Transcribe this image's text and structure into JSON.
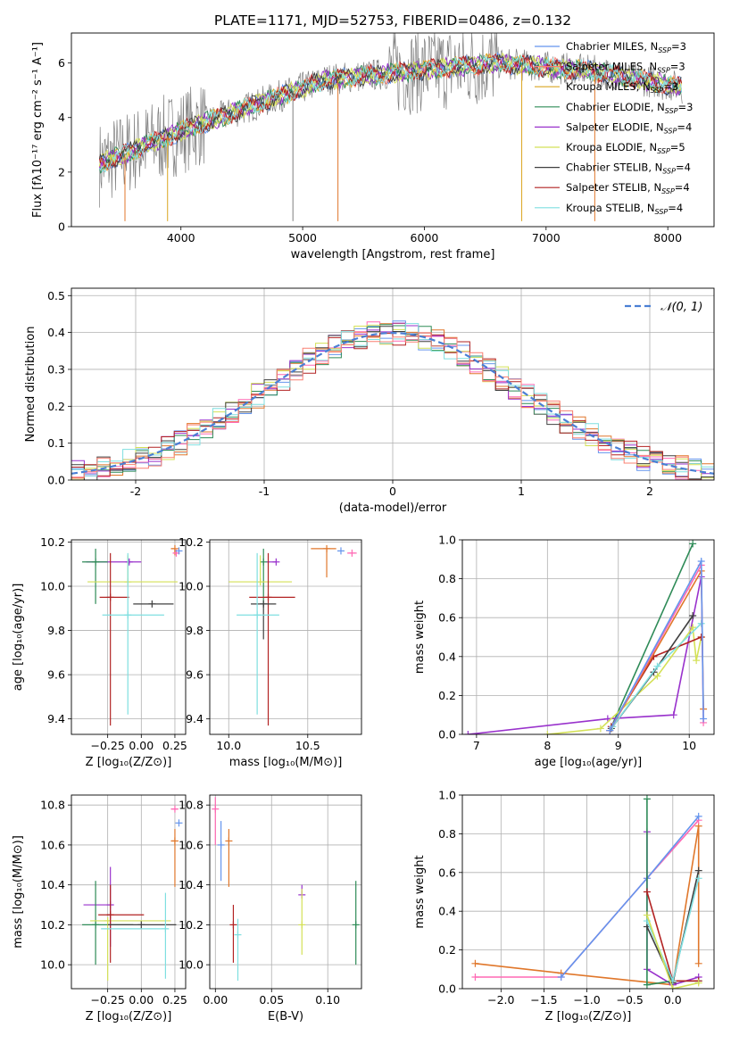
{
  "figure_title": "PLATE=1171, MJD=52753, FIBERID=0486, z=0.132",
  "legend_entries": [
    {
      "label": "Chabrier MILES, N",
      "sub": "SSP",
      "suffix": "=3",
      "color": "#6495ed"
    },
    {
      "label": "Salpeter MILES, N",
      "sub": "SSP",
      "suffix": "=3",
      "color": "#fa8072"
    },
    {
      "label": "Kroupa MILES, N",
      "sub": "SSP",
      "suffix": "=3",
      "color": "#daa520"
    },
    {
      "label": "Chabrier ELODIE, N",
      "sub": "SSP",
      "suffix": "=3",
      "color": "#2e8b57"
    },
    {
      "label": "Salpeter ELODIE, N",
      "sub": "SSP",
      "suffix": "=4",
      "color": "#9932cc"
    },
    {
      "label": "Kroupa ELODIE, N",
      "sub": "SSP",
      "suffix": "=5",
      "color": "#d4e157"
    },
    {
      "label": "Chabrier STELIB, N",
      "sub": "SSP",
      "suffix": "=4",
      "color": "#404040"
    },
    {
      "label": "Salpeter STELIB, N",
      "sub": "SSP",
      "suffix": "=4",
      "color": "#b22222"
    },
    {
      "label": "Kroupa STELIB, N",
      "sub": "SSP",
      "suffix": "=4",
      "color": "#7fdfe0"
    }
  ],
  "chart_data": [
    {
      "type": "line",
      "xlabel": "wavelength [Angstrom, rest frame]",
      "ylabel": "Flux [fλ10⁻¹⁷ erg cm⁻² s⁻¹ A⁻¹]",
      "xlim": [
        3100,
        8380
      ],
      "ylim": [
        0,
        7.1
      ],
      "xticks": [
        4000,
        5000,
        6000,
        7000,
        8000
      ],
      "yticks": [
        0,
        2,
        4,
        6
      ],
      "grid": false,
      "legend": "right",
      "series_names": "legend_entries",
      "data_range": [
        3330,
        8120
      ]
    },
    {
      "type": "histogram",
      "xlabel": "(data-model)/error",
      "ylabel": "Normed distribution",
      "xlim": [
        -2.5,
        2.5
      ],
      "ylim": [
        0,
        0.52
      ],
      "xticks": [
        -2,
        -1,
        0,
        1,
        2
      ],
      "yticks": [
        0.0,
        0.1,
        0.2,
        0.3,
        0.4,
        0.5
      ],
      "grid": true,
      "reference_curve": {
        "label": "𝒩(0, 1)",
        "color": "#4a7fd4"
      },
      "bin_width": 0.1
    },
    {
      "type": "scatter",
      "xlabel": "Z [log₁₀(Z/Z⊙)]",
      "ylabel": "age  [log₁₀(age/yr)]",
      "xlim": [
        -0.52,
        0.33
      ],
      "ylim": [
        9.33,
        10.21
      ],
      "xticks": [
        -0.25,
        0.0,
        0.25
      ],
      "xtick_labels": [
        "−0.25",
        "0.00",
        "0.25"
      ],
      "yticks": [
        9.4,
        9.6,
        9.8,
        10.0,
        10.2
      ],
      "points": [
        {
          "color": "#9932cc",
          "x": -0.09,
          "xerr": [
            0.32,
            0.09
          ],
          "y": 10.11,
          "yerr": [
            0.01,
            0.01
          ]
        },
        {
          "color": "#2e8b57",
          "x": -0.34,
          "xerr": [
            0.1,
            0.09
          ],
          "y": 10.11,
          "yerr": [
            0.19,
            0.06
          ]
        },
        {
          "color": "#d4e157",
          "x": -0.1,
          "xerr": [
            0.3,
            0.37
          ],
          "y": 10.02,
          "yerr": [
            0.0,
            0.12
          ]
        },
        {
          "color": "#b22222",
          "x": -0.23,
          "xerr": [
            0.08,
            0.14
          ],
          "y": 9.95,
          "yerr": [
            0.58,
            0.2
          ]
        },
        {
          "color": "#404040",
          "x": 0.08,
          "xerr": [
            0.14,
            0.16
          ],
          "y": 9.92,
          "yerr": [
            0.0,
            0.0
          ]
        },
        {
          "color": "#7fdfe0",
          "x": -0.1,
          "xerr": [
            0.19,
            0.27
          ],
          "y": 9.87,
          "yerr": [
            0.45,
            0.28
          ]
        },
        {
          "color": "#e0772b",
          "x": 0.25,
          "xerr": [
            0.03,
            0.0
          ],
          "y": 10.17,
          "yerr": [
            0.03,
            0.0
          ]
        },
        {
          "color": "#ff69b4",
          "x": 0.26,
          "xerr": [
            0.02,
            0.02
          ],
          "y": 10.15,
          "yerr": [
            0.0,
            0.0
          ]
        },
        {
          "color": "#6495ed",
          "x": 0.28,
          "xerr": [
            0.0,
            0.0
          ],
          "y": 10.16,
          "yerr": [
            0.0,
            0.0
          ]
        }
      ]
    },
    {
      "type": "scatter",
      "xlabel": "mass [log₁₀(M/M⊙)]",
      "ylabel": "",
      "xlim": [
        9.88,
        10.84
      ],
      "ylim": [
        9.33,
        10.21
      ],
      "xticks": [
        10.0,
        10.5
      ],
      "xtick_labels": [
        "10.0",
        "10.5"
      ],
      "yticks": [
        9.4,
        9.6,
        9.8,
        10.0,
        10.2
      ],
      "points": [
        {
          "color": "#9932cc",
          "x": 10.3,
          "xerr": [
            0.06,
            0.0
          ],
          "y": 10.11,
          "yerr": [
            0.0,
            0.0
          ]
        },
        {
          "color": "#2e8b57",
          "x": 10.22,
          "xerr": [
            0.0,
            0.0
          ],
          "y": 10.11,
          "yerr": [
            0.2,
            0.06
          ]
        },
        {
          "color": "#d4e157",
          "x": 10.2,
          "xerr": [
            0.2,
            0.2
          ],
          "y": 10.02,
          "yerr": [
            0.0,
            0.12
          ]
        },
        {
          "color": "#b22222",
          "x": 10.25,
          "xerr": [
            0.12,
            0.17
          ],
          "y": 9.95,
          "yerr": [
            0.58,
            0.2
          ]
        },
        {
          "color": "#404040",
          "x": 10.22,
          "xerr": [
            0.08,
            0.08
          ],
          "y": 9.92,
          "yerr": [
            0.16,
            0.0
          ]
        },
        {
          "color": "#7fdfe0",
          "x": 10.18,
          "xerr": [
            0.13,
            0.14
          ],
          "y": 9.87,
          "yerr": [
            0.45,
            0.28
          ]
        },
        {
          "color": "#e0772b",
          "x": 10.62,
          "xerr": [
            0.1,
            0.06
          ],
          "y": 10.17,
          "yerr": [
            0.13,
            0.0
          ]
        },
        {
          "color": "#ff69b4",
          "x": 10.78,
          "xerr": [
            0.03,
            0.03
          ],
          "y": 10.15,
          "yerr": [
            0.0,
            0.0
          ]
        },
        {
          "color": "#6495ed",
          "x": 10.71,
          "xerr": [
            0.0,
            0.0
          ],
          "y": 10.16,
          "yerr": [
            0.0,
            0.0
          ]
        }
      ]
    },
    {
      "type": "line",
      "xlabel": "age  [log₁₀(age/yr)]",
      "ylabel": "mass weight",
      "xlim": [
        6.8,
        10.35
      ],
      "ylim": [
        0,
        1.0
      ],
      "xticks": [
        7,
        8,
        9,
        10
      ],
      "yticks": [
        0.0,
        0.2,
        0.4,
        0.6,
        0.8,
        1.0
      ],
      "series": [
        {
          "color": "#2e8b57",
          "points": [
            [
              8.88,
              0.02
            ],
            [
              10.05,
              0.98
            ]
          ]
        },
        {
          "color": "#9932cc",
          "points": [
            [
              6.88,
              0.0
            ],
            [
              8.85,
              0.08
            ],
            [
              9.78,
              0.1
            ],
            [
              10.17,
              0.81
            ]
          ]
        },
        {
          "color": "#d4e157",
          "points": [
            [
              8.0,
              0.0
            ],
            [
              8.75,
              0.03
            ],
            [
              9.55,
              0.3
            ],
            [
              10.05,
              0.55
            ],
            [
              10.1,
              0.38
            ],
            [
              10.17,
              0.5
            ]
          ]
        },
        {
          "color": "#b22222",
          "points": [
            [
              8.9,
              0.04
            ],
            [
              9.5,
              0.4
            ],
            [
              10.17,
              0.5
            ]
          ]
        },
        {
          "color": "#404040",
          "points": [
            [
              8.9,
              0.03
            ],
            [
              9.5,
              0.32
            ],
            [
              10.05,
              0.61
            ]
          ]
        },
        {
          "color": "#7fdfe0",
          "points": [
            [
              8.92,
              0.04
            ],
            [
              9.55,
              0.35
            ],
            [
              10.17,
              0.57
            ]
          ]
        },
        {
          "color": "#e0772b",
          "points": [
            [
              8.88,
              0.02
            ],
            [
              10.17,
              0.84
            ],
            [
              10.2,
              0.13
            ]
          ]
        },
        {
          "color": "#ff69b4",
          "points": [
            [
              8.88,
              0.02
            ],
            [
              10.17,
              0.87
            ],
            [
              10.2,
              0.06
            ]
          ]
        },
        {
          "color": "#6495ed",
          "points": [
            [
              8.88,
              0.02
            ],
            [
              10.17,
              0.89
            ],
            [
              10.2,
              0.08
            ]
          ]
        }
      ]
    },
    {
      "type": "scatter",
      "xlabel": "Z [log₁₀(Z/Z⊙)]",
      "ylabel": "mass [log₁₀(M/M⊙)]",
      "xlim": [
        -0.52,
        0.33
      ],
      "ylim": [
        9.88,
        10.85
      ],
      "xticks": [
        -0.25,
        0.0,
        0.25
      ],
      "xtick_labels": [
        "−0.25",
        "0.00",
        "0.25"
      ],
      "yticks": [
        10.0,
        10.2,
        10.4,
        10.6,
        10.8
      ],
      "points": [
        {
          "color": "#9932cc",
          "x": -0.23,
          "xerr": [
            0.2,
            0.0
          ],
          "y": 10.3,
          "yerr": [
            0.21,
            0.19
          ]
        },
        {
          "color": "#2e8b57",
          "x": -0.34,
          "xerr": [
            0.1,
            0.28
          ],
          "y": 10.2,
          "yerr": [
            0.2,
            0.22
          ]
        },
        {
          "color": "#d4e157",
          "x": -0.25,
          "xerr": [
            0.13,
            0.47
          ],
          "y": 10.22,
          "yerr": [
            0.3,
            0.0
          ]
        },
        {
          "color": "#b22222",
          "x": -0.23,
          "xerr": [
            0.09,
            0.25
          ],
          "y": 10.25,
          "yerr": [
            0.24,
            0.15
          ]
        },
        {
          "color": "#404040",
          "x": 0.0,
          "xerr": [
            0.25,
            0.26
          ],
          "y": 10.2,
          "yerr": [
            0.0,
            0.0
          ]
        },
        {
          "color": "#7fdfe0",
          "x": 0.18,
          "xerr": [
            0.48,
            0.02
          ],
          "y": 10.18,
          "yerr": [
            0.25,
            0.18
          ]
        },
        {
          "color": "#e0772b",
          "x": 0.25,
          "xerr": [
            0.03,
            0.0
          ],
          "y": 10.62,
          "yerr": [
            0.23,
            0.06
          ]
        },
        {
          "color": "#ff69b4",
          "x": 0.25,
          "xerr": [
            0.03,
            0.02
          ],
          "y": 10.78,
          "yerr": [
            0.0,
            0.0
          ]
        },
        {
          "color": "#6495ed",
          "x": 0.28,
          "xerr": [
            0.0,
            0.0
          ],
          "y": 10.71,
          "yerr": [
            0.0,
            0.0
          ]
        }
      ]
    },
    {
      "type": "scatter",
      "xlabel": "E(B-V)",
      "ylabel": "",
      "xlim": [
        -0.005,
        0.13
      ],
      "ylim": [
        9.88,
        10.85
      ],
      "xticks": [
        0.0,
        0.05,
        0.1
      ],
      "xtick_labels": [
        "0.00",
        "0.05",
        "0.10"
      ],
      "yticks": [
        10.0,
        10.2,
        10.4,
        10.6,
        10.8
      ],
      "points": [
        {
          "color": "#ff69b4",
          "x": 0.0,
          "xerr": [
            0,
            0
          ],
          "y": 10.78,
          "yerr": [
            0.18,
            0.06
          ]
        },
        {
          "color": "#6495ed",
          "x": 0.005,
          "xerr": [
            0,
            0
          ],
          "y": 10.6,
          "yerr": [
            0.18,
            0.12
          ]
        },
        {
          "color": "#e0772b",
          "x": 0.012,
          "xerr": [
            0,
            0
          ],
          "y": 10.62,
          "yerr": [
            0.23,
            0.06
          ]
        },
        {
          "color": "#b22222",
          "x": 0.016,
          "xerr": [
            0,
            0
          ],
          "y": 10.2,
          "yerr": [
            0.19,
            0.1
          ]
        },
        {
          "color": "#7fdfe0",
          "x": 0.02,
          "xerr": [
            0,
            0
          ],
          "y": 10.15,
          "yerr": [
            0.23,
            0.08
          ]
        },
        {
          "color": "#9932cc",
          "x": 0.077,
          "xerr": [
            0,
            0
          ],
          "y": 10.35,
          "yerr": [
            0.0,
            0.05
          ]
        },
        {
          "color": "#d4e157",
          "x": 0.077,
          "xerr": [
            0,
            0
          ],
          "y": 10.2,
          "yerr": [
            0.15,
            0.18
          ]
        },
        {
          "color": "#2e8b57",
          "x": 0.125,
          "xerr": [
            0,
            0
          ],
          "y": 10.2,
          "yerr": [
            0.2,
            0.22
          ]
        }
      ]
    },
    {
      "type": "line",
      "xlabel": "Z [log₁₀(Z/Z⊙)]",
      "ylabel": "mass weight",
      "xlim": [
        -2.45,
        0.48
      ],
      "ylim": [
        0,
        1.0
      ],
      "xticks": [
        -2.0,
        -1.5,
        -1.0,
        -0.5,
        0.0
      ],
      "xtick_labels": [
        "−2.0",
        "−1.5",
        "−1.0",
        "−0.5",
        "0.0"
      ],
      "yticks": [
        0.0,
        0.2,
        0.4,
        0.6,
        0.8,
        1.0
      ],
      "series": [
        {
          "color": "#e0772b",
          "points": [
            [
              -2.3,
              0.13
            ],
            [
              -1.3,
              0.08
            ],
            [
              0.0,
              0.02
            ],
            [
              0.3,
              0.84
            ],
            [
              0.3,
              0.13
            ]
          ]
        },
        {
          "color": "#ff69b4",
          "points": [
            [
              -2.3,
              0.06
            ],
            [
              -1.3,
              0.06
            ],
            [
              -0.3,
              0.57
            ],
            [
              0.3,
              0.87
            ]
          ]
        },
        {
          "color": "#6495ed",
          "points": [
            [
              -1.3,
              0.06
            ],
            [
              -0.3,
              0.57
            ],
            [
              0.3,
              0.89
            ]
          ]
        },
        {
          "color": "#9932cc",
          "points": [
            [
              -0.3,
              0.81
            ],
            [
              -0.3,
              0.1
            ],
            [
              0.0,
              0.02
            ],
            [
              0.3,
              0.06
            ]
          ]
        },
        {
          "color": "#2e8b57",
          "points": [
            [
              -0.3,
              0.98
            ],
            [
              -0.3,
              0.02
            ],
            [
              0.0,
              0.04
            ],
            [
              0.3,
              0.04
            ]
          ]
        },
        {
          "color": "#b22222",
          "points": [
            [
              -0.3,
              0.5
            ],
            [
              0.0,
              0.04
            ],
            [
              0.3,
              0.04
            ]
          ]
        },
        {
          "color": "#404040",
          "points": [
            [
              -0.3,
              0.32
            ],
            [
              0.0,
              0.03
            ],
            [
              0.3,
              0.61
            ]
          ]
        },
        {
          "color": "#7fdfe0",
          "points": [
            [
              -0.3,
              0.35
            ],
            [
              0.0,
              0.04
            ],
            [
              0.3,
              0.57
            ]
          ]
        },
        {
          "color": "#d4e157",
          "points": [
            [
              -0.3,
              0.38
            ],
            [
              0.0,
              0.0
            ],
            [
              0.3,
              0.03
            ]
          ]
        }
      ]
    }
  ]
}
